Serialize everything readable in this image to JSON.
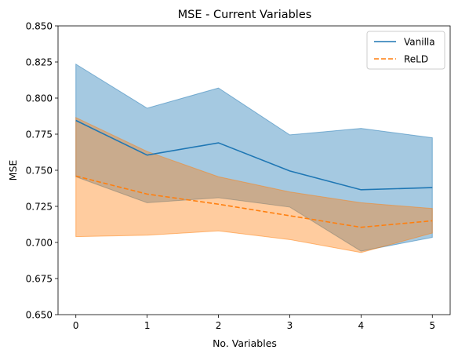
{
  "chart_data": {
    "type": "line",
    "title": "MSE - Current Variables",
    "xlabel": "No. Variables",
    "ylabel": "MSE",
    "xlim": [
      -0.25,
      5.25
    ],
    "ylim": [
      0.65,
      0.85
    ],
    "x": [
      0,
      1,
      2,
      3,
      4,
      5
    ],
    "xticks": [
      "0",
      "1",
      "2",
      "3",
      "4",
      "5"
    ],
    "yticks": [
      0.65,
      0.675,
      0.7,
      0.725,
      0.75,
      0.775,
      0.8,
      0.825,
      0.85
    ],
    "ytick_labels": [
      "0.650",
      "0.675",
      "0.700",
      "0.725",
      "0.750",
      "0.775",
      "0.800",
      "0.825",
      "0.850"
    ],
    "grid": false,
    "legend_position": "top-right",
    "series": [
      {
        "name": "Vanilla",
        "color": "#1f77b4",
        "linestyle": "solid",
        "values": [
          0.7845,
          0.7605,
          0.769,
          0.7495,
          0.7365,
          0.738
        ],
        "band_upper": [
          0.8235,
          0.793,
          0.807,
          0.7745,
          0.779,
          0.7725
        ],
        "band_lower": [
          0.7455,
          0.7275,
          0.731,
          0.7245,
          0.694,
          0.7035
        ]
      },
      {
        "name": "ReLD",
        "color": "#ff7f0e",
        "linestyle": "dashed",
        "values": [
          0.746,
          0.7335,
          0.7265,
          0.7185,
          0.7105,
          0.715
        ],
        "band_upper": [
          0.7865,
          0.763,
          0.7455,
          0.735,
          0.7275,
          0.7235
        ],
        "band_lower": [
          0.704,
          0.705,
          0.708,
          0.702,
          0.693,
          0.7065
        ]
      }
    ]
  }
}
